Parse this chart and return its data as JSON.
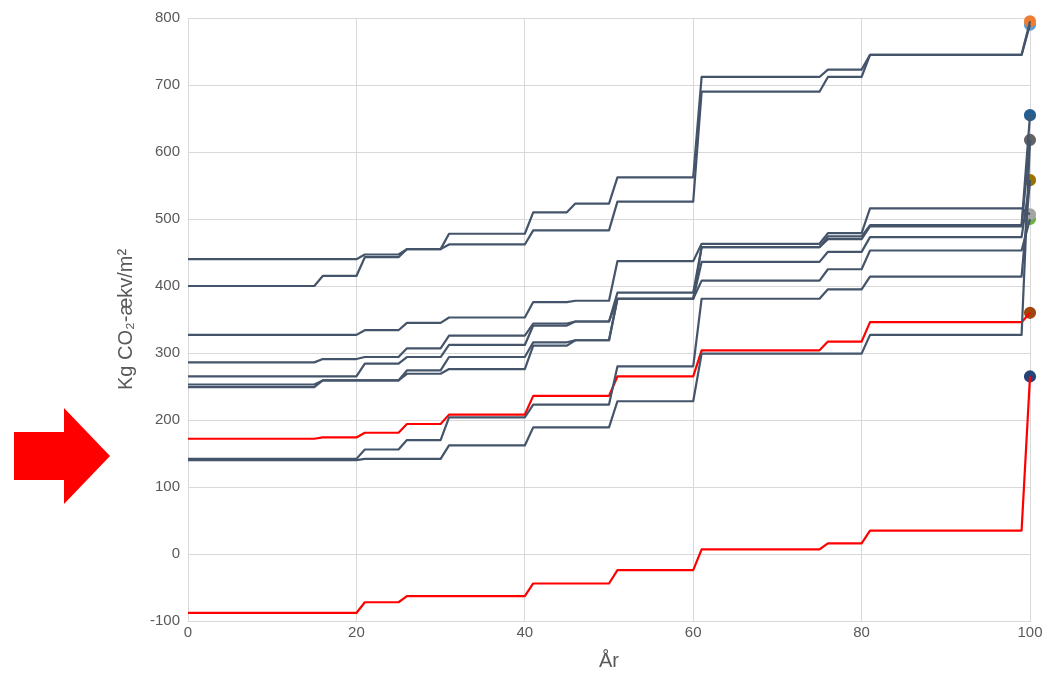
{
  "chart_data": {
    "type": "line",
    "xlabel": "År",
    "ylabel": "Kg CO₂-ækv/m²",
    "xlim": [
      0,
      100
    ],
    "ylim": [
      -100,
      800
    ],
    "xticks": [
      0,
      20,
      40,
      60,
      80,
      100
    ],
    "yticks": [
      -100,
      0,
      100,
      200,
      300,
      400,
      500,
      600,
      700,
      800
    ],
    "grid": true,
    "legend": false,
    "marker": "none",
    "line_style": "solid",
    "x": [
      0,
      15,
      16,
      20,
      21,
      25,
      26,
      30,
      31,
      40,
      41,
      45,
      46,
      50,
      51,
      60,
      61,
      75,
      76,
      80,
      81,
      99,
      100
    ],
    "series": [
      {
        "color": "#44546a",
        "values": [
          440,
          440,
          440,
          440,
          447,
          447,
          455,
          455,
          478,
          478,
          510,
          510,
          523,
          523,
          562,
          562,
          712,
          712,
          723,
          723,
          745,
          745,
          795
        ]
      },
      {
        "color": "#44546a",
        "values": [
          400,
          400,
          415,
          415,
          443,
          443,
          455,
          455,
          462,
          462,
          483,
          483,
          483,
          483,
          526,
          526,
          690,
          690,
          712,
          712,
          745,
          745,
          790
        ]
      },
      {
        "color": "#44546a",
        "values": [
          327,
          327,
          327,
          327,
          334,
          334,
          345,
          345,
          353,
          353,
          376,
          376,
          378,
          378,
          437,
          437,
          463,
          463,
          479,
          479,
          516,
          516,
          507
        ]
      },
      {
        "color": "#44546a",
        "values": [
          286,
          286,
          291,
          291,
          294,
          294,
          307,
          307,
          326,
          326,
          344,
          344,
          347,
          347,
          390,
          390,
          458,
          458,
          474,
          474,
          491,
          491,
          655
        ]
      },
      {
        "color": "#44546a",
        "values": [
          265,
          265,
          265,
          265,
          284,
          284,
          294,
          294,
          312,
          312,
          341,
          341,
          347,
          347,
          381,
          381,
          458,
          458,
          470,
          470,
          489,
          489,
          618
        ]
      },
      {
        "color": "#44546a",
        "values": [
          253,
          253,
          259,
          259,
          259,
          259,
          274,
          274,
          294,
          294,
          316,
          316,
          319,
          319,
          381,
          381,
          436,
          436,
          451,
          451,
          473,
          473,
          558
        ]
      },
      {
        "color": "#44546a",
        "values": [
          249,
          249,
          259,
          259,
          259,
          259,
          269,
          269,
          276,
          276,
          311,
          311,
          319,
          319,
          381,
          381,
          408,
          408,
          425,
          425,
          453,
          453,
          500
        ]
      },
      {
        "color": "#44546a",
        "values": [
          142,
          142,
          142,
          142,
          156,
          156,
          170,
          170,
          204,
          204,
          223,
          223,
          223,
          223,
          280,
          280,
          381,
          381,
          395,
          395,
          414,
          414,
          558
        ]
      },
      {
        "color": "#44546a",
        "values": [
          140,
          140,
          140,
          140,
          142,
          142,
          142,
          142,
          162,
          162,
          189,
          189,
          189,
          189,
          228,
          228,
          299,
          299,
          299,
          299,
          327,
          327,
          618
        ]
      },
      {
        "color": "#ff0000",
        "values": [
          172,
          172,
          174,
          174,
          181,
          181,
          194,
          194,
          208,
          208,
          236,
          236,
          236,
          236,
          265,
          265,
          304,
          304,
          317,
          317,
          346,
          346,
          360
        ]
      },
      {
        "color": "#ff0000",
        "values": [
          -88,
          -88,
          -88,
          -88,
          -72,
          -72,
          -63,
          -63,
          -63,
          -63,
          -44,
          -44,
          -44,
          -44,
          -24,
          -24,
          7,
          7,
          16,
          16,
          35,
          35,
          265
        ]
      },
      {
        "type": "scatter",
        "marker": "circle",
        "color": "#ed7d31",
        "values": [
          null,
          null,
          null,
          null,
          null,
          null,
          null,
          null,
          null,
          null,
          null,
          null,
          null,
          null,
          null,
          null,
          null,
          null,
          null,
          null,
          null,
          null,
          795
        ]
      },
      {
        "type": "scatter",
        "marker": "circle",
        "color": "#5b9bd5",
        "values": [
          null,
          null,
          null,
          null,
          null,
          null,
          null,
          null,
          null,
          null,
          null,
          null,
          null,
          null,
          null,
          null,
          null,
          null,
          null,
          null,
          null,
          null,
          790
        ]
      },
      {
        "type": "scatter",
        "marker": "circle",
        "color": "#255e91",
        "values": [
          null,
          null,
          null,
          null,
          null,
          null,
          null,
          null,
          null,
          null,
          null,
          null,
          null,
          null,
          null,
          null,
          null,
          null,
          null,
          null,
          null,
          null,
          655
        ]
      },
      {
        "type": "scatter",
        "marker": "circle",
        "color": "#636363",
        "values": [
          null,
          null,
          null,
          null,
          null,
          null,
          null,
          null,
          null,
          null,
          null,
          null,
          null,
          null,
          null,
          null,
          null,
          null,
          null,
          null,
          null,
          null,
          618
        ]
      },
      {
        "type": "scatter",
        "marker": "circle",
        "color": "#997300",
        "values": [
          null,
          null,
          null,
          null,
          null,
          null,
          null,
          null,
          null,
          null,
          null,
          null,
          null,
          null,
          null,
          null,
          null,
          null,
          null,
          null,
          null,
          null,
          558
        ]
      },
      {
        "type": "scatter",
        "marker": "circle",
        "color": "#a5a5a5",
        "values": [
          null,
          null,
          null,
          null,
          null,
          null,
          null,
          null,
          null,
          null,
          null,
          null,
          null,
          null,
          null,
          null,
          null,
          null,
          null,
          null,
          null,
          null,
          507
        ]
      },
      {
        "type": "scatter",
        "marker": "circle",
        "color": "#70ad47",
        "values": [
          null,
          null,
          null,
          null,
          null,
          null,
          null,
          null,
          null,
          null,
          null,
          null,
          null,
          null,
          null,
          null,
          null,
          null,
          null,
          null,
          null,
          null,
          500
        ]
      },
      {
        "type": "scatter",
        "marker": "circle",
        "color": "#9e480e",
        "values": [
          null,
          null,
          null,
          null,
          null,
          null,
          null,
          null,
          null,
          null,
          null,
          null,
          null,
          null,
          null,
          null,
          null,
          null,
          null,
          null,
          null,
          null,
          360
        ]
      },
      {
        "type": "scatter",
        "marker": "circle",
        "color": "#264478",
        "values": [
          null,
          null,
          null,
          null,
          null,
          null,
          null,
          null,
          null,
          null,
          null,
          null,
          null,
          null,
          null,
          null,
          null,
          null,
          null,
          null,
          null,
          null,
          265
        ]
      }
    ]
  }
}
